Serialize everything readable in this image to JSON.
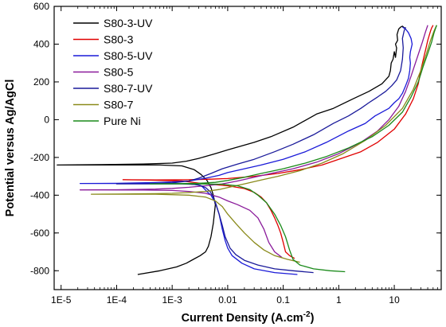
{
  "chart_data": {
    "type": "line",
    "xlabel": "Current Density (A.cm",
    "xlabel_sup": "-2",
    "xlabel_tail": ")",
    "ylabel": "Potential versus Ag/AgCl",
    "x_scale": "log",
    "xlim": [
      7.5e-06,
      70
    ],
    "ylim": [
      -900,
      600
    ],
    "x_ticks": [
      {
        "value": 1e-05,
        "label": "1E-5"
      },
      {
        "value": 0.0001,
        "label": "1E-4"
      },
      {
        "value": 0.001,
        "label": "1E-3"
      },
      {
        "value": 0.01,
        "label": "0.01"
      },
      {
        "value": 0.1,
        "label": "0.1"
      },
      {
        "value": 1,
        "label": "1"
      },
      {
        "value": 10,
        "label": "10"
      }
    ],
    "y_ticks": [
      {
        "value": 600,
        "label": "600"
      },
      {
        "value": 400,
        "label": "400"
      },
      {
        "value": 200,
        "label": "200"
      },
      {
        "value": 0,
        "label": "0"
      },
      {
        "value": -200,
        "label": "-200"
      },
      {
        "value": -400,
        "label": "-400"
      },
      {
        "value": -600,
        "label": "-600"
      },
      {
        "value": -800,
        "label": "-800"
      }
    ],
    "grid": false,
    "legend_position": "top-left",
    "series": [
      {
        "name": "S80-3-UV",
        "color": "#000000",
        "points": [
          [
            0.00024,
            -820
          ],
          [
            0.0006,
            -800
          ],
          [
            0.0012,
            -780
          ],
          [
            0.0018,
            -760
          ],
          [
            0.0024,
            -740
          ],
          [
            0.0032,
            -720
          ],
          [
            0.004,
            -700
          ],
          [
            0.0045,
            -670
          ],
          [
            0.005,
            -620
          ],
          [
            0.0055,
            -550
          ],
          [
            0.006,
            -450
          ],
          [
            0.0055,
            -400
          ],
          [
            0.005,
            -360
          ],
          [
            0.0042,
            -320
          ],
          [
            0.0033,
            -290
          ],
          [
            0.0025,
            -265
          ],
          [
            0.0015,
            -245
          ],
          [
            0.0006,
            -240
          ],
          [
            0.0001,
            -240
          ],
          [
            8.5e-06,
            -240
          ],
          [
            5e-05,
            -238
          ],
          [
            0.0003,
            -235
          ],
          [
            0.001,
            -230
          ],
          [
            0.0018,
            -220
          ],
          [
            0.003,
            -205
          ],
          [
            0.006,
            -180
          ],
          [
            0.01,
            -160
          ],
          [
            0.03,
            -120
          ],
          [
            0.06,
            -90
          ],
          [
            0.15,
            -40
          ],
          [
            0.4,
            30
          ],
          [
            0.8,
            60
          ],
          [
            1.8,
            110
          ],
          [
            3.5,
            150
          ],
          [
            6,
            190
          ],
          [
            8,
            230
          ],
          [
            8.5,
            260
          ],
          [
            8.8,
            300
          ],
          [
            9.5,
            320
          ],
          [
            10,
            360
          ],
          [
            10.5,
            330
          ],
          [
            11,
            380
          ],
          [
            10.5,
            400
          ],
          [
            11.5,
            420
          ],
          [
            11.2,
            450
          ],
          [
            12,
            480
          ],
          [
            13,
            490
          ],
          [
            14,
            495
          ],
          [
            16,
            480
          ]
        ]
      },
      {
        "name": "S80-3",
        "color": "#e00000",
        "points": [
          [
            0.16,
            -735
          ],
          [
            0.13,
            -720
          ],
          [
            0.11,
            -700
          ],
          [
            0.1,
            -650
          ],
          [
            0.09,
            -600
          ],
          [
            0.08,
            -560
          ],
          [
            0.07,
            -520
          ],
          [
            0.06,
            -480
          ],
          [
            0.05,
            -440
          ],
          [
            0.04,
            -410
          ],
          [
            0.03,
            -385
          ],
          [
            0.02,
            -365
          ],
          [
            0.01,
            -350
          ],
          [
            0.004,
            -340
          ],
          [
            0.0015,
            -325
          ],
          [
            0.0004,
            -320
          ],
          [
            0.00013,
            -318
          ],
          [
            0.0005,
            -319
          ],
          [
            0.002,
            -318
          ],
          [
            0.005,
            -315
          ],
          [
            0.01,
            -312
          ],
          [
            0.03,
            -300
          ],
          [
            0.08,
            -285
          ],
          [
            0.2,
            -265
          ],
          [
            0.5,
            -240
          ],
          [
            1,
            -210
          ],
          [
            2.5,
            -170
          ],
          [
            5,
            -120
          ],
          [
            10,
            -50
          ],
          [
            16,
            30
          ],
          [
            22,
            110
          ],
          [
            27,
            190
          ],
          [
            30,
            260
          ],
          [
            34,
            330
          ],
          [
            38,
            390
          ],
          [
            40,
            420
          ],
          [
            43,
            450
          ],
          [
            45,
            470
          ],
          [
            47,
            485
          ],
          [
            50,
            500
          ]
        ]
      },
      {
        "name": "S80-5-UV",
        "color": "#1a1ad8",
        "points": [
          [
            0.18,
            -820
          ],
          [
            0.07,
            -810
          ],
          [
            0.03,
            -790
          ],
          [
            0.018,
            -760
          ],
          [
            0.012,
            -720
          ],
          [
            0.01,
            -680
          ],
          [
            0.009,
            -640
          ],
          [
            0.008,
            -580
          ],
          [
            0.007,
            -500
          ],
          [
            0.006,
            -440
          ],
          [
            0.005,
            -400
          ],
          [
            0.0042,
            -380
          ],
          [
            0.0035,
            -355
          ],
          [
            0.003,
            -345
          ],
          [
            0.002,
            -340
          ],
          [
            0.001,
            -338
          ],
          [
            0.0004,
            -338
          ],
          [
            2.2e-05,
            -338
          ],
          [
            0.0001,
            -337
          ],
          [
            0.0005,
            -333
          ],
          [
            0.001,
            -330
          ],
          [
            0.002,
            -325
          ],
          [
            0.004,
            -310
          ],
          [
            0.007,
            -295
          ],
          [
            0.01,
            -280
          ],
          [
            0.02,
            -260
          ],
          [
            0.04,
            -240
          ],
          [
            0.1,
            -210
          ],
          [
            0.25,
            -170
          ],
          [
            0.6,
            -120
          ],
          [
            1.5,
            -60
          ],
          [
            3,
            -20
          ],
          [
            4.5,
            20
          ],
          [
            6,
            40
          ],
          [
            8,
            60
          ],
          [
            10,
            90
          ],
          [
            12,
            110
          ],
          [
            14,
            140
          ],
          [
            16,
            180
          ],
          [
            18,
            220
          ],
          [
            19,
            260
          ],
          [
            19.5,
            300
          ],
          [
            19,
            330
          ],
          [
            19.5,
            360
          ],
          [
            21,
            400
          ],
          [
            20,
            430
          ],
          [
            18,
            460
          ],
          [
            16,
            480
          ],
          [
            14,
            490
          ]
        ]
      },
      {
        "name": "S80-5",
        "color": "#8a1a9a",
        "points": [
          [
            0.095,
            -730
          ],
          [
            0.07,
            -700
          ],
          [
            0.055,
            -650
          ],
          [
            0.045,
            -580
          ],
          [
            0.035,
            -520
          ],
          [
            0.025,
            -480
          ],
          [
            0.015,
            -450
          ],
          [
            0.01,
            -430
          ],
          [
            0.007,
            -410
          ],
          [
            0.004,
            -390
          ],
          [
            0.002,
            -380
          ],
          [
            0.001,
            -375
          ],
          [
            0.0003,
            -373
          ],
          [
            2.2e-05,
            -372
          ],
          [
            0.0001,
            -371
          ],
          [
            0.0005,
            -368
          ],
          [
            0.001,
            -364
          ],
          [
            0.002,
            -358
          ],
          [
            0.004,
            -350
          ],
          [
            0.008,
            -340
          ],
          [
            0.015,
            -325
          ],
          [
            0.03,
            -305
          ],
          [
            0.06,
            -285
          ],
          [
            0.15,
            -260
          ],
          [
            0.4,
            -225
          ],
          [
            1,
            -180
          ],
          [
            2.5,
            -120
          ],
          [
            5,
            -60
          ],
          [
            8,
            0
          ],
          [
            12,
            70
          ],
          [
            16,
            150
          ],
          [
            20,
            230
          ],
          [
            24,
            300
          ],
          [
            28,
            360
          ],
          [
            32,
            410
          ],
          [
            36,
            460
          ],
          [
            40,
            500
          ]
        ]
      },
      {
        "name": "S80-7-UV",
        "color": "#1a1a9a",
        "points": [
          [
            0.35,
            -810
          ],
          [
            0.15,
            -800
          ],
          [
            0.07,
            -790
          ],
          [
            0.035,
            -770
          ],
          [
            0.02,
            -745
          ],
          [
            0.014,
            -715
          ],
          [
            0.011,
            -680
          ],
          [
            0.009,
            -620
          ],
          [
            0.008,
            -560
          ],
          [
            0.007,
            -500
          ],
          [
            0.0062,
            -450
          ],
          [
            0.0055,
            -410
          ],
          [
            0.0048,
            -380
          ],
          [
            0.004,
            -360
          ],
          [
            0.0032,
            -348
          ],
          [
            0.0025,
            -343
          ],
          [
            0.0015,
            -340
          ],
          [
            0.0006,
            -340
          ],
          [
            0.0001,
            -340
          ],
          [
            0.0001,
            -340
          ],
          [
            0.0003,
            -340
          ],
          [
            0.001,
            -335
          ],
          [
            0.002,
            -325
          ],
          [
            0.003,
            -310
          ],
          [
            0.005,
            -285
          ],
          [
            0.008,
            -260
          ],
          [
            0.015,
            -235
          ],
          [
            0.03,
            -210
          ],
          [
            0.07,
            -170
          ],
          [
            0.15,
            -130
          ],
          [
            0.35,
            -80
          ],
          [
            0.8,
            -20
          ],
          [
            1.5,
            20
          ],
          [
            2.5,
            60
          ],
          [
            3.5,
            90
          ],
          [
            5,
            120
          ],
          [
            7,
            150
          ],
          [
            9,
            180
          ],
          [
            11,
            210
          ],
          [
            13,
            260
          ],
          [
            14,
            320
          ],
          [
            14.5,
            380
          ],
          [
            14,
            430
          ],
          [
            15,
            470
          ],
          [
            16,
            490
          ]
        ]
      },
      {
        "name": "S80-7",
        "color": "#8a8a1a",
        "points": [
          [
            0.2,
            -755
          ],
          [
            0.12,
            -740
          ],
          [
            0.07,
            -720
          ],
          [
            0.045,
            -690
          ],
          [
            0.03,
            -650
          ],
          [
            0.02,
            -600
          ],
          [
            0.014,
            -550
          ],
          [
            0.01,
            -500
          ],
          [
            0.008,
            -460
          ],
          [
            0.006,
            -430
          ],
          [
            0.004,
            -410
          ],
          [
            0.002,
            -400
          ],
          [
            0.0005,
            -395
          ],
          [
            3.5e-05,
            -395
          ],
          [
            0.0001,
            -394
          ],
          [
            0.0005,
            -392
          ],
          [
            0.001,
            -390
          ],
          [
            0.002,
            -386
          ],
          [
            0.004,
            -380
          ],
          [
            0.007,
            -370
          ],
          [
            0.01,
            -360
          ],
          [
            0.02,
            -340
          ],
          [
            0.04,
            -320
          ],
          [
            0.08,
            -300
          ],
          [
            0.2,
            -270
          ],
          [
            0.5,
            -230
          ],
          [
            1.2,
            -180
          ],
          [
            3,
            -110
          ],
          [
            7,
            -30
          ],
          [
            14,
            60
          ],
          [
            22,
            160
          ],
          [
            30,
            260
          ],
          [
            38,
            350
          ],
          [
            45,
            420
          ],
          [
            52,
            470
          ],
          [
            58,
            500
          ]
        ]
      },
      {
        "name": "Pure Ni",
        "color": "#1a8a1a",
        "points": [
          [
            1.3,
            -805
          ],
          [
            0.7,
            -800
          ],
          [
            0.35,
            -790
          ],
          [
            0.2,
            -770
          ],
          [
            0.15,
            -740
          ],
          [
            0.13,
            -690
          ],
          [
            0.11,
            -620
          ],
          [
            0.09,
            -560
          ],
          [
            0.07,
            -500
          ],
          [
            0.05,
            -440
          ],
          [
            0.035,
            -400
          ],
          [
            0.025,
            -370
          ],
          [
            0.015,
            -350
          ],
          [
            0.008,
            -342
          ],
          [
            0.003,
            -340
          ],
          [
            0.001,
            -340
          ],
          [
            0.0004,
            -340
          ],
          [
            0.001,
            -339
          ],
          [
            0.003,
            -337
          ],
          [
            0.006,
            -332
          ],
          [
            0.01,
            -322
          ],
          [
            0.02,
            -305
          ],
          [
            0.04,
            -285
          ],
          [
            0.1,
            -260
          ],
          [
            0.25,
            -230
          ],
          [
            0.6,
            -195
          ],
          [
            1.5,
            -150
          ],
          [
            4,
            -90
          ],
          [
            8,
            -30
          ],
          [
            14,
            40
          ],
          [
            20,
            120
          ],
          [
            27,
            200
          ],
          [
            33,
            280
          ],
          [
            40,
            350
          ],
          [
            47,
            410
          ],
          [
            52,
            460
          ],
          [
            58,
            500
          ]
        ]
      }
    ]
  }
}
